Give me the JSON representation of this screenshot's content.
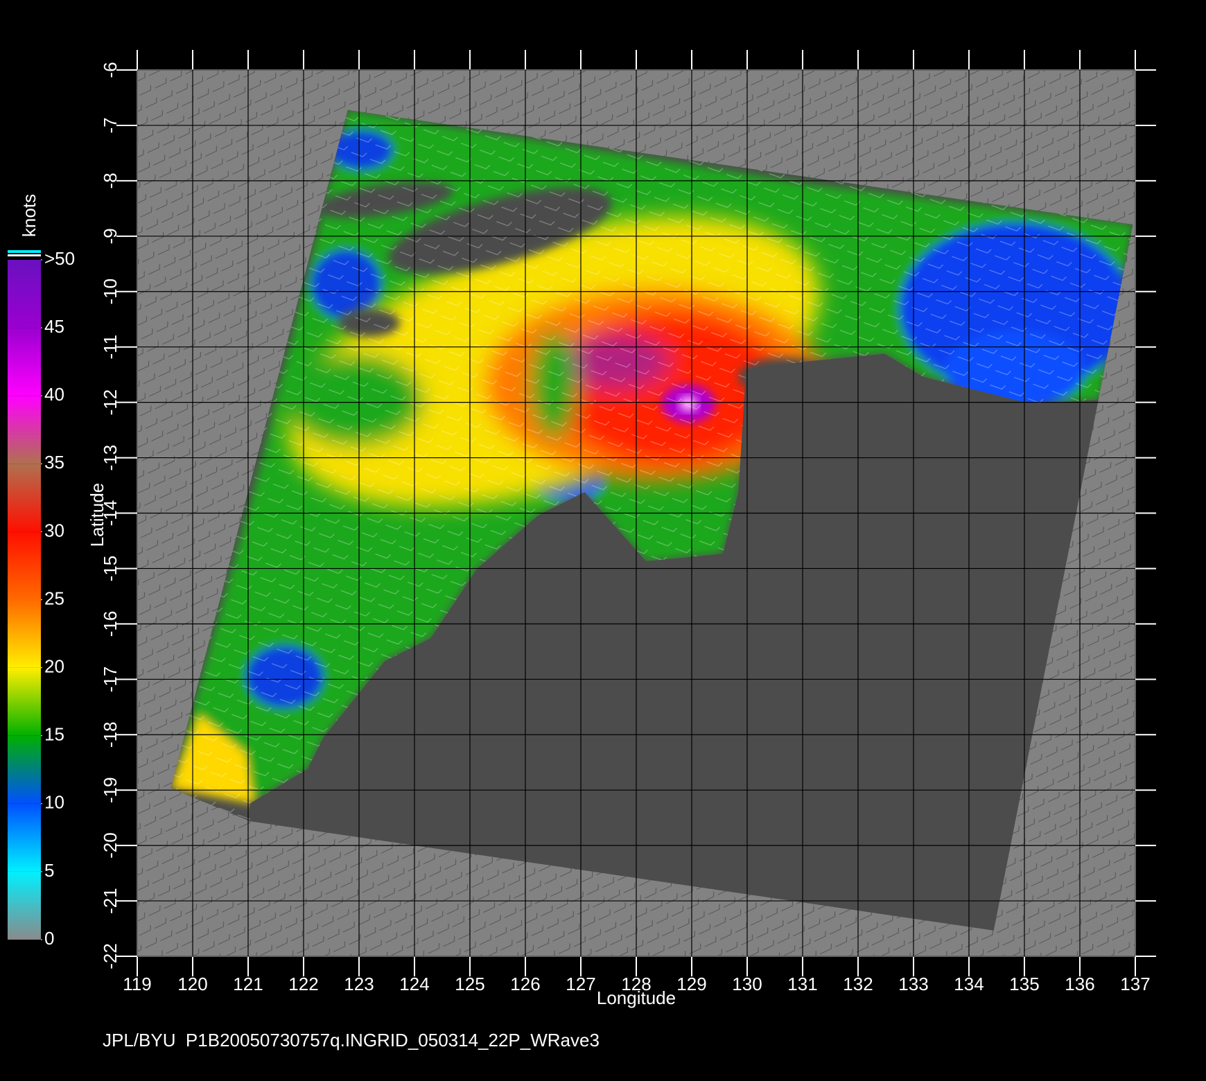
{
  "chart_data": {
    "type": "map",
    "xlabel": "Longitude",
    "ylabel": "Latitude",
    "xlim": [
      119,
      137
    ],
    "ylim": [
      -22,
      -6
    ],
    "xticks": [
      119,
      120,
      121,
      122,
      123,
      124,
      125,
      126,
      127,
      128,
      129,
      130,
      131,
      132,
      133,
      134,
      135,
      136,
      137
    ],
    "yticks": [
      -6,
      -7,
      -8,
      -9,
      -10,
      -11,
      -12,
      -13,
      -14,
      -15,
      -16,
      -17,
      -18,
      -19,
      -20,
      -21,
      -22
    ],
    "grid": true,
    "colorbar": {
      "label": "knots",
      "lim": [
        0,
        50
      ],
      "ticks": [
        0,
        5,
        10,
        15,
        20,
        25,
        30,
        35,
        40,
        45,
        {
          "value": 50,
          "label": ">50"
        }
      ],
      "colors": [
        "#8a8a8a",
        "#00f0ff",
        "#0050ff",
        "#00b000",
        "#ffee00",
        "#ff6a00",
        "#ff0f00",
        "#b07050",
        "#ff00ff",
        "#9a00d0",
        "#6a10c0"
      ]
    }
  },
  "footer": "JPL/BYU  P1B20050730757q.INGRID_050314_22P_WRave3"
}
